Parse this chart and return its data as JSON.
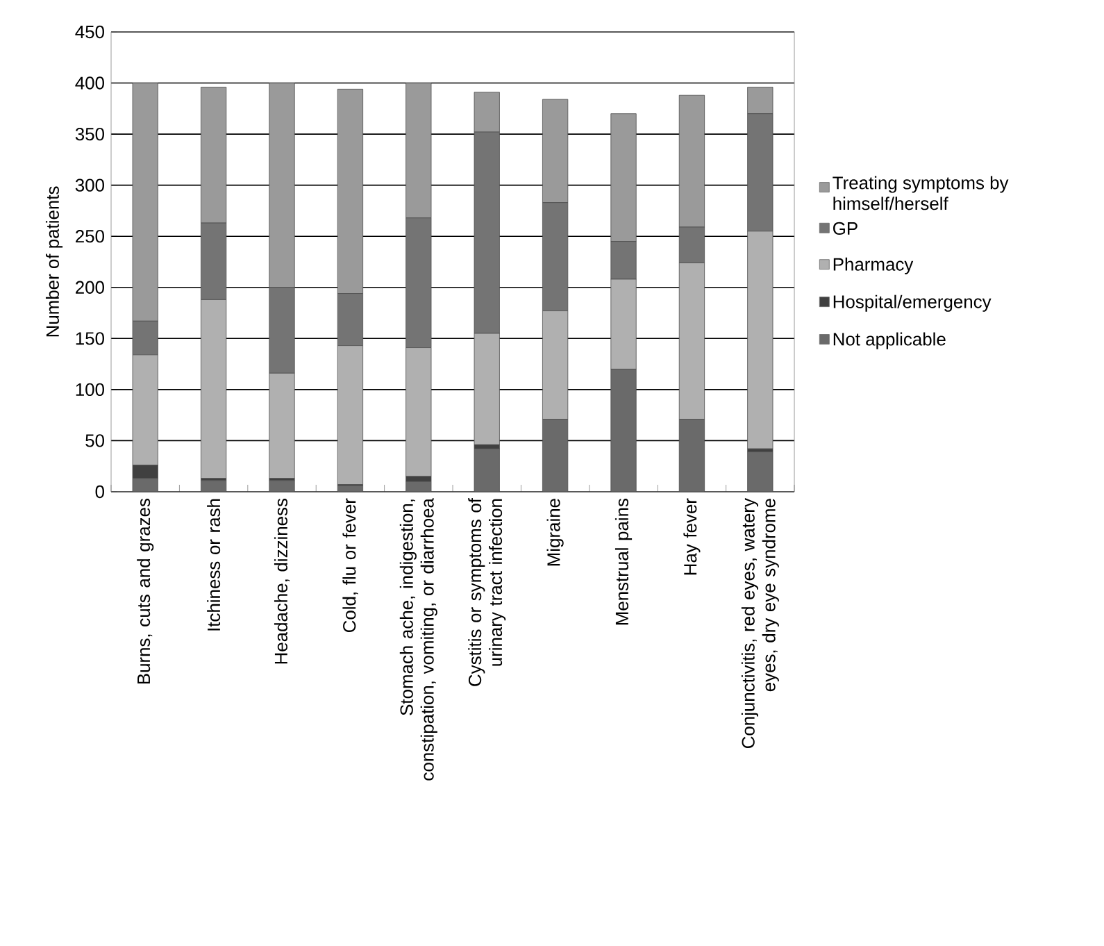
{
  "chart_data": {
    "type": "bar",
    "stacked": true,
    "ylabel": "Number of patients",
    "categories": [
      "Burns, cuts and grazes",
      "Itchiness or rash",
      "Headache, dizziness",
      "Cold, flu or fever",
      "Stomach ache, indigestion, constipation, vomiting, or diarrhoea",
      "Cystitis or symptoms of urinary tract infection",
      "Migraine",
      "Menstrual pains",
      "Hay fever",
      "Conjunctivitis, red eyes, watery eyes, dry eye syndrome"
    ],
    "series": [
      {
        "name": "Not applicable",
        "color": "#6a6a6a",
        "values": [
          13,
          11,
          11,
          6,
          10,
          42,
          71,
          120,
          71,
          39
        ]
      },
      {
        "name": "Hospital/emergency",
        "color": "#404040",
        "values": [
          13,
          2,
          2,
          1,
          5,
          4,
          0,
          0,
          0,
          3
        ]
      },
      {
        "name": "Pharmacy",
        "color": "#b0b0b0",
        "values": [
          108,
          175,
          103,
          136,
          126,
          109,
          106,
          88,
          153,
          213
        ]
      },
      {
        "name": "GP",
        "color": "#747474",
        "values": [
          33,
          75,
          84,
          51,
          127,
          197,
          106,
          37,
          35,
          115
        ]
      },
      {
        "name": "Treating symptoms by himself/herself",
        "color": "#9a9a9a",
        "values": [
          233,
          133,
          200,
          200,
          132,
          39,
          101,
          125,
          129,
          26
        ]
      }
    ],
    "ylim": [
      0,
      450
    ],
    "yticks": [
      0,
      50,
      100,
      150,
      200,
      250,
      300,
      350,
      400,
      450
    ],
    "grid": "y",
    "legend": "right"
  }
}
